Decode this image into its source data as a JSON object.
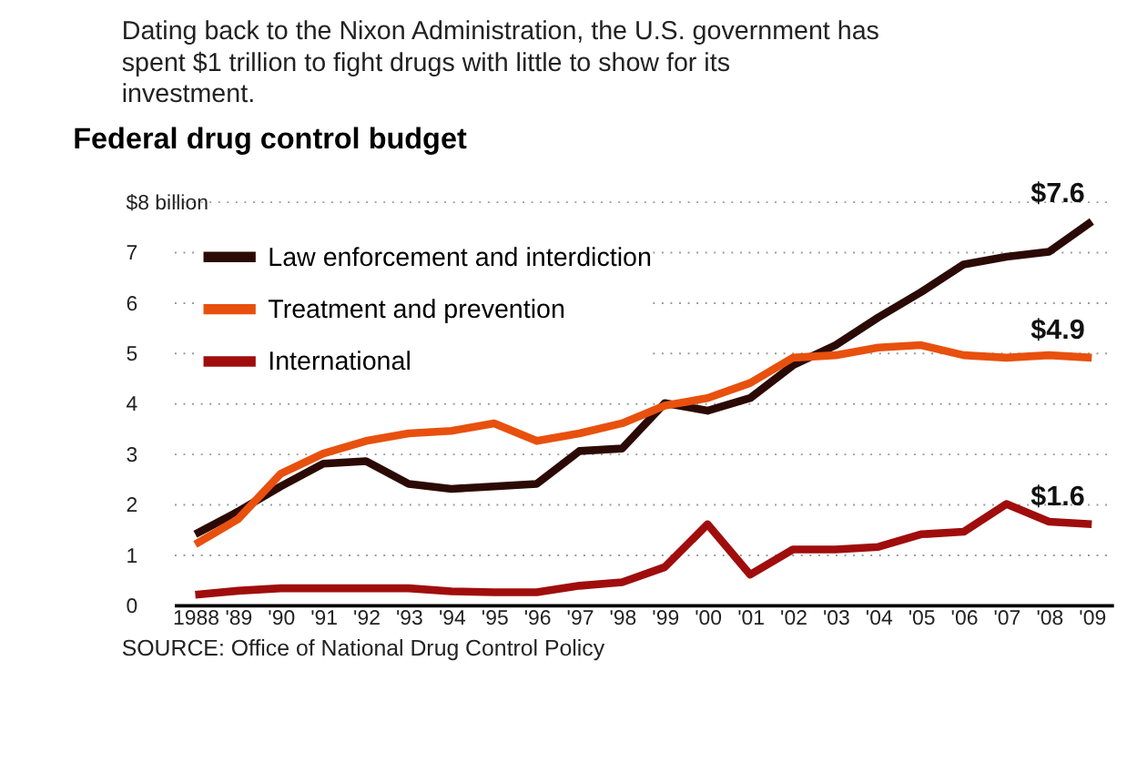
{
  "chart_data": {
    "type": "line",
    "title": "Federal drug control budget",
    "annotations": [
      "Dating back to the Nixon Administration, the U.S. government has spent $1 trillion to fight drugs with little to show for its investment.",
      "SOURCE: Office of National Drug Control Policy"
    ],
    "categories": [
      "1988",
      "'89",
      "'90",
      "'91",
      "'92",
      "'93",
      "'94",
      "'95",
      "'96",
      "'97",
      "'98",
      "'99",
      "'00",
      "'01",
      "'02",
      "'03",
      "'04",
      "'05",
      "'06",
      "'07",
      "'08",
      "'09"
    ],
    "series": [
      {
        "name": "Law enforcement and interdiction",
        "color": "#2b0a05",
        "values": [
          1.4,
          1.85,
          2.35,
          2.8,
          2.85,
          2.4,
          2.3,
          2.35,
          2.4,
          3.05,
          3.1,
          4.0,
          3.85,
          4.1,
          4.75,
          5.15,
          5.7,
          6.2,
          6.75,
          6.9,
          7.0,
          7.6
        ],
        "value_labels": [
          null,
          null,
          null,
          null,
          null,
          null,
          null,
          null,
          null,
          null,
          null,
          null,
          null,
          null,
          null,
          null,
          null,
          null,
          null,
          null,
          null,
          "$7.6"
        ]
      },
      {
        "name": "Treatment and prevention",
        "color": "#e8500e",
        "values": [
          1.2,
          1.7,
          2.6,
          3.0,
          3.25,
          3.4,
          3.45,
          3.6,
          3.25,
          3.4,
          3.6,
          3.95,
          4.1,
          4.4,
          4.9,
          4.95,
          5.1,
          5.15,
          4.95,
          4.9,
          4.95,
          4.9
        ],
        "value_labels": [
          null,
          null,
          null,
          null,
          null,
          null,
          null,
          null,
          null,
          null,
          null,
          null,
          null,
          null,
          null,
          null,
          null,
          null,
          null,
          null,
          null,
          "$4.9"
        ]
      },
      {
        "name": "International",
        "color": "#a00d0d",
        "values": [
          0.2,
          0.28,
          0.33,
          0.33,
          0.33,
          0.33,
          0.27,
          0.25,
          0.25,
          0.38,
          0.45,
          0.75,
          1.6,
          0.6,
          1.1,
          1.1,
          1.15,
          1.4,
          1.45,
          2.0,
          1.65,
          1.6
        ],
        "value_labels": [
          null,
          null,
          null,
          null,
          null,
          null,
          null,
          null,
          null,
          null,
          null,
          null,
          null,
          null,
          null,
          null,
          null,
          null,
          null,
          null,
          null,
          "$1.6"
        ]
      }
    ],
    "ylim": [
      0,
      8
    ],
    "yticks": [
      0,
      1,
      2,
      3,
      4,
      5,
      6,
      7,
      {
        "value": 8,
        "label": "$8 billion"
      }
    ],
    "grid": "y",
    "legend": "top left",
    "line_style": "solid",
    "marker": "none"
  }
}
